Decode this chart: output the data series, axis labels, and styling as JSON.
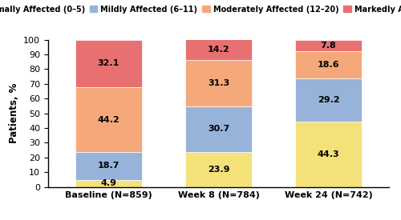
{
  "categories": [
    "Baseline (N=859)",
    "Week 8 (N=784)",
    "Week 24 (N=742)"
  ],
  "segments": {
    "Minimally Affected (0–5)": [
      4.9,
      23.9,
      44.3
    ],
    "Mildly Affected (6–11)": [
      18.7,
      30.7,
      29.2
    ],
    "Moderately Affected (12–20)": [
      44.2,
      31.3,
      18.6
    ],
    "Markedly Affected (21–30)": [
      32.1,
      14.2,
      7.8
    ]
  },
  "colors": {
    "Minimally Affected (0–5)": "#F5E17A",
    "Mildly Affected (6–11)": "#97B3D9",
    "Moderately Affected (12–20)": "#F5A97A",
    "Markedly Affected (21–30)": "#E87070"
  },
  "ylabel": "Patients, %",
  "ylim": [
    0,
    100
  ],
  "yticks": [
    0,
    10,
    20,
    30,
    40,
    50,
    60,
    70,
    80,
    90,
    100
  ],
  "bar_width": 0.6,
  "label_fontsize": 8,
  "legend_fontsize": 7,
  "axis_fontsize": 8.5,
  "tick_fontsize": 8
}
